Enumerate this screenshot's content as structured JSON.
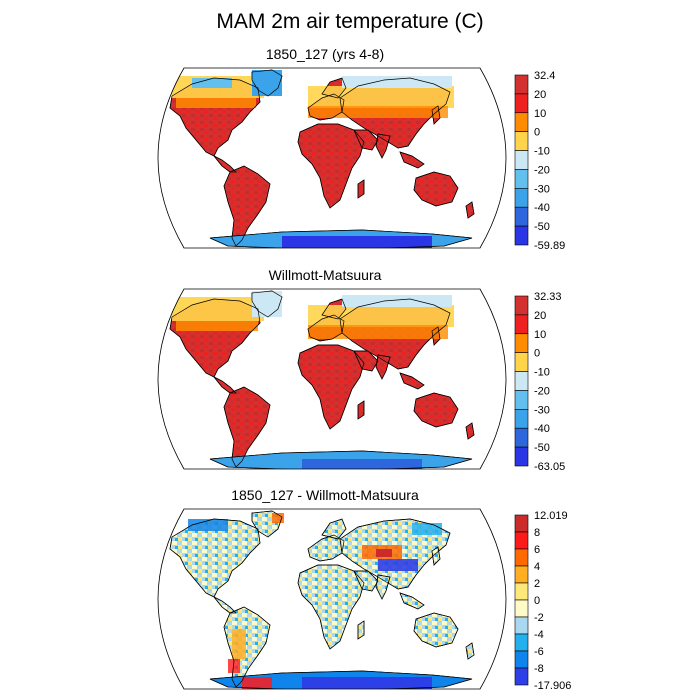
{
  "figure": {
    "title": "MAM 2m air temperature (C)"
  },
  "colors": {
    "land_outline": "#000000",
    "ocean": "#ffffff"
  },
  "panels": [
    {
      "title": "1850_127 (yrs 4-8)",
      "colorbar": {
        "labels": [
          "32.4",
          "20",
          "10",
          "0",
          "-10",
          "-20",
          "-30",
          "-40",
          "-50",
          "-59.89"
        ],
        "colors": [
          "#d43030",
          "#ee2020",
          "#ff8c00",
          "#ffd44a",
          "#cde8f5",
          "#63c0ee",
          "#3aa3ea",
          "#2e66dd",
          "#2a36e6"
        ]
      }
    },
    {
      "title": "Willmott-Matsuura",
      "colorbar": {
        "labels": [
          "32.33",
          "20",
          "10",
          "0",
          "-10",
          "-20",
          "-30",
          "-40",
          "-50",
          "-63.05"
        ],
        "colors": [
          "#d43030",
          "#ee2020",
          "#ff8c00",
          "#ffd44a",
          "#cde8f5",
          "#63c0ee",
          "#3aa3ea",
          "#2e66dd",
          "#2a36e6"
        ]
      }
    },
    {
      "title": "1850_127 - Willmott-Matsuura",
      "colorbar": {
        "labels": [
          "12.019",
          "8",
          "6",
          "4",
          "2",
          "0",
          "-2",
          "-4",
          "-6",
          "-8",
          "-17.906"
        ],
        "colors": [
          "#cc2b2b",
          "#ff1a1a",
          "#ff6a00",
          "#ffae22",
          "#ffe87a",
          "#fffbc8",
          "#a9d8f0",
          "#23b0ee",
          "#0f84ea",
          "#2d3fe6"
        ]
      }
    }
  ]
}
